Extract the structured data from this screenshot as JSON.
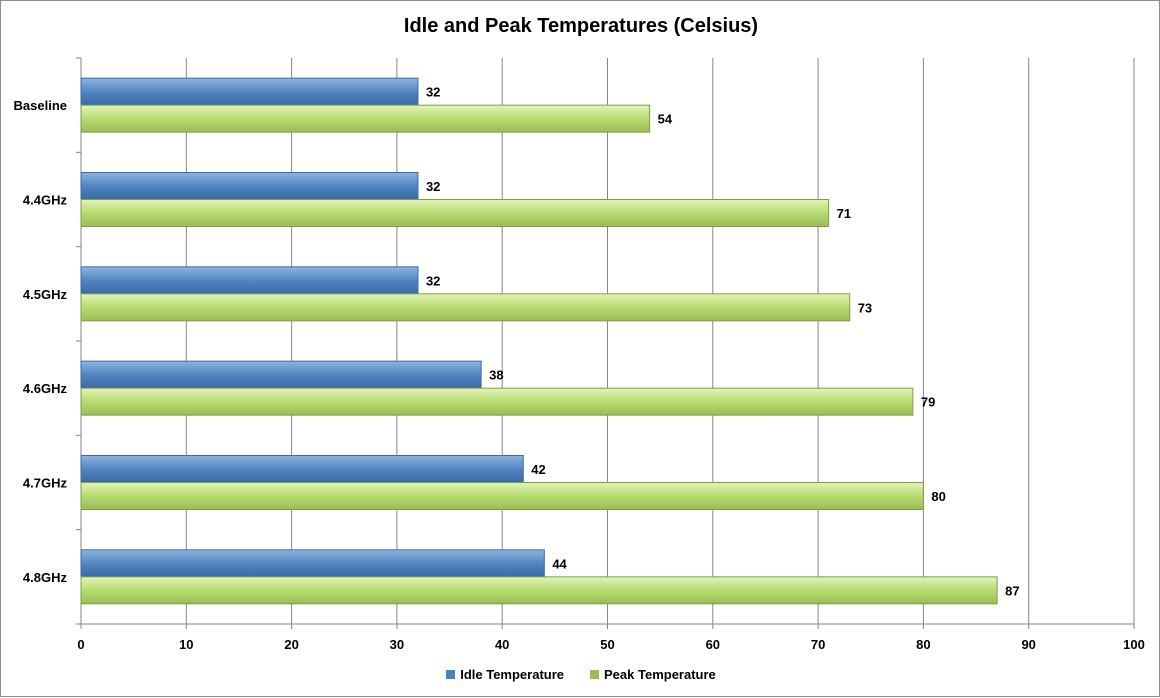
{
  "chart_data": {
    "type": "bar",
    "orientation": "horizontal",
    "title": "Idle and Peak Temperatures (Celsius)",
    "xlabel": "",
    "ylabel": "",
    "categories": [
      "Baseline",
      "4.4GHz",
      "4.5GHz",
      "4.6GHz",
      "4.7GHz",
      "4.8GHz"
    ],
    "series": [
      {
        "name": "Idle Temperature",
        "values": [
          32,
          32,
          32,
          38,
          42,
          44
        ],
        "color": "#4f81bd"
      },
      {
        "name": "Peak Temperature",
        "values": [
          54,
          71,
          73,
          79,
          80,
          87
        ],
        "color": "#9bbb59"
      }
    ],
    "xlim": [
      0,
      100
    ],
    "xticks": [
      0,
      10,
      20,
      30,
      40,
      50,
      60,
      70,
      80,
      90,
      100
    ],
    "grid": true,
    "legend_position": "bottom",
    "data_labels": true
  }
}
